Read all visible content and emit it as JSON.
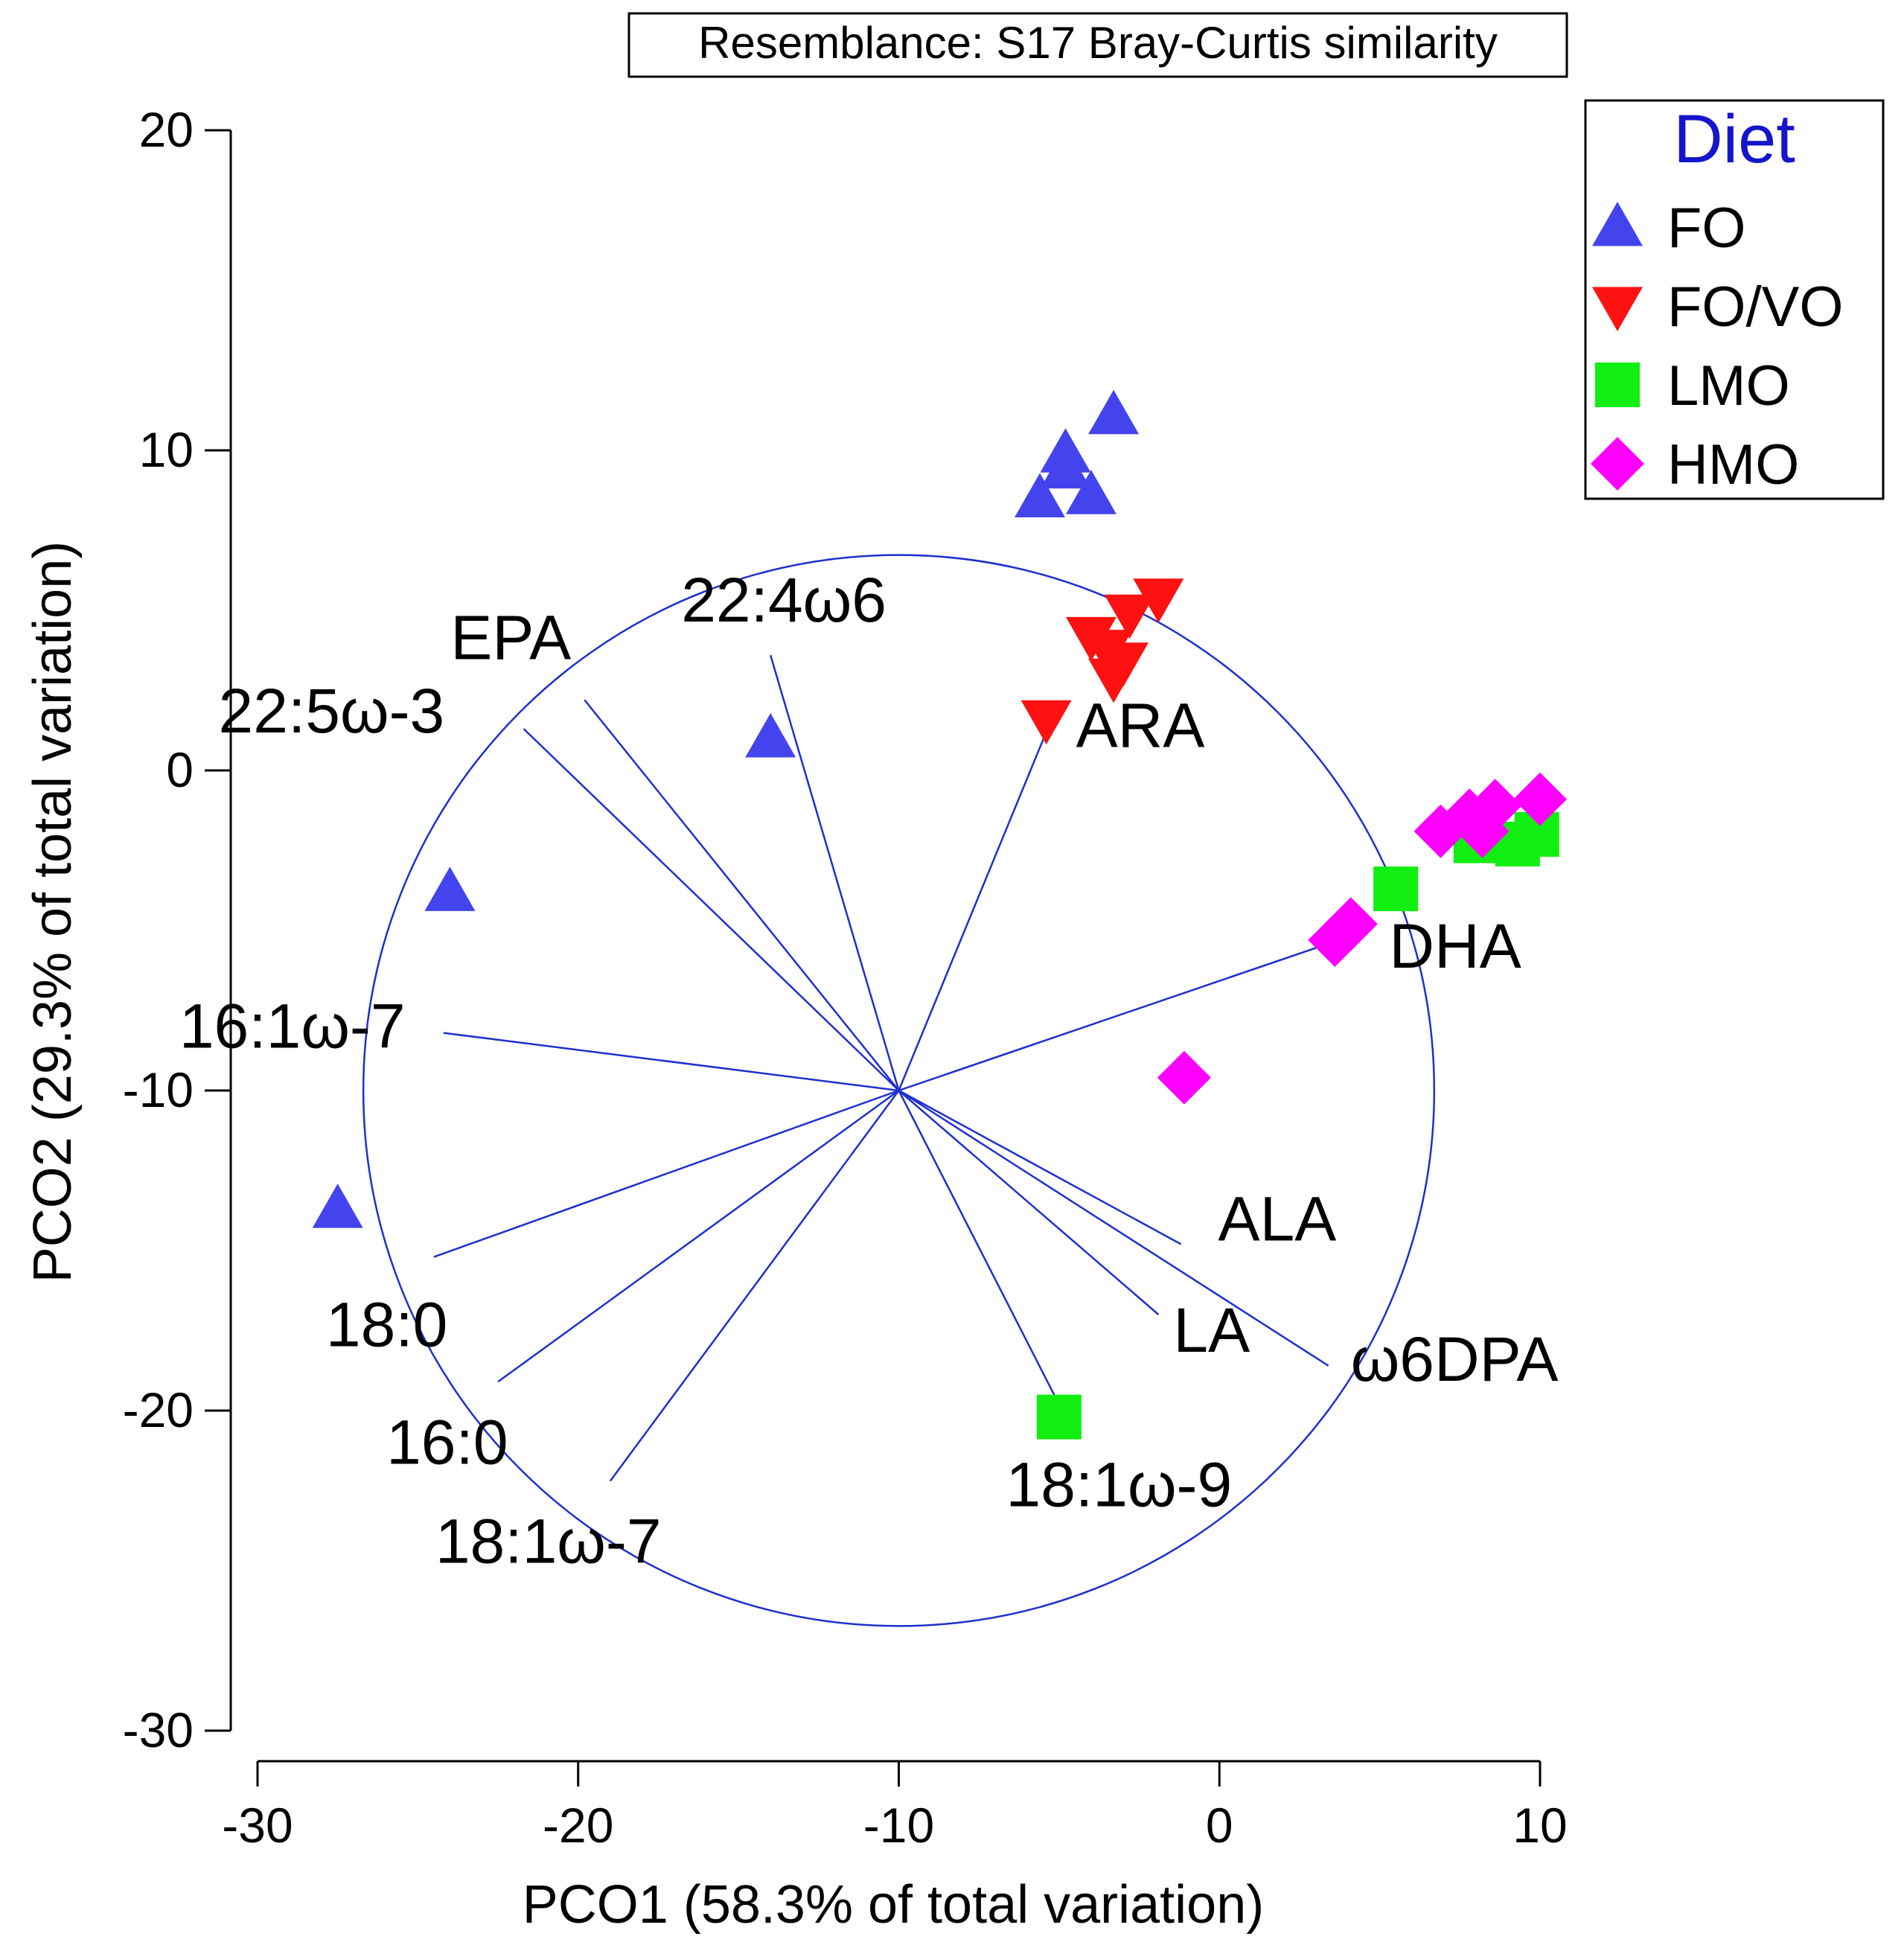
{
  "chart_data": {
    "type": "scatter",
    "title": "Resemblance: S17 Bray-Curtis similarity",
    "xlabel": "PCO1 (58.3% of total variation)",
    "ylabel": "PCO2 (29.3% of total variation)",
    "xlim": [
      -30,
      10
    ],
    "ylim": [
      -30,
      20
    ],
    "xticks": [
      -30,
      -20,
      -10,
      0,
      10
    ],
    "yticks": [
      20,
      10,
      0,
      -10,
      -20,
      -30
    ],
    "legend": {
      "title": "Diet",
      "position": "top-right",
      "entries": [
        "FO",
        "FO/VO",
        "LMO",
        "HMO"
      ]
    },
    "series": [
      {
        "name": "FO",
        "marker": "triangle-up",
        "color": "#4444ee",
        "points": [
          [
            -3.3,
            11.1
          ],
          [
            -4.8,
            9.9
          ],
          [
            -4.8,
            9.4
          ],
          [
            -5.6,
            8.5
          ],
          [
            -4.0,
            8.6
          ],
          [
            -14.0,
            1.0
          ],
          [
            -24.0,
            -3.8
          ],
          [
            -27.5,
            -13.7
          ]
        ]
      },
      {
        "name": "FO/VO",
        "marker": "triangle-down",
        "color": "#ff1111",
        "points": [
          [
            -1.9,
            5.4
          ],
          [
            -2.8,
            4.9
          ],
          [
            -4.0,
            4.2
          ],
          [
            -3.5,
            3.8
          ],
          [
            -3.0,
            3.4
          ],
          [
            -3.3,
            2.9
          ],
          [
            -5.4,
            1.6
          ]
        ]
      },
      {
        "name": "LMO",
        "marker": "square",
        "color": "#11ee11",
        "points": [
          [
            5.5,
            -3.7
          ],
          [
            8.0,
            -2.2
          ],
          [
            9.3,
            -2.3
          ],
          [
            9.9,
            -2.0
          ],
          [
            -5.0,
            -20.2
          ]
        ]
      },
      {
        "name": "HMO",
        "marker": "diamond",
        "color": "#ff00ff",
        "points": [
          [
            10.0,
            -0.9
          ],
          [
            8.6,
            -1.1
          ],
          [
            7.8,
            -1.4
          ],
          [
            6.9,
            -1.9
          ],
          [
            8.2,
            -1.9
          ],
          [
            4.1,
            -4.8
          ],
          [
            3.6,
            -5.3
          ],
          [
            -1.1,
            -9.6
          ]
        ]
      }
    ],
    "correlation_circle": {
      "center": [
        -10,
        -10
      ],
      "radius": 16.7,
      "color": "#1f2fcf"
    },
    "vectors": [
      {
        "label": "22:4ω6",
        "end": [
          -14.0,
          3.6
        ]
      },
      {
        "label": "EPA",
        "end": [
          -19.8,
          2.2
        ]
      },
      {
        "label": "22:5ω-3",
        "end": [
          -21.7,
          1.3
        ]
      },
      {
        "label": "ARA",
        "end": [
          -5.4,
          1.2
        ]
      },
      {
        "label": "DHA",
        "end": [
          4.6,
          -5.0
        ]
      },
      {
        "label": "16:1ω-7",
        "end": [
          -24.2,
          -8.2
        ]
      },
      {
        "label": "18:0",
        "end": [
          -24.5,
          -15.2
        ]
      },
      {
        "label": "16:0",
        "end": [
          -22.5,
          -19.1
        ]
      },
      {
        "label": "18:1ω-7",
        "end": [
          -19.0,
          -22.2
        ]
      },
      {
        "label": "18:1ω-9",
        "end": [
          -4.8,
          -20.2
        ]
      },
      {
        "label": "LA",
        "end": [
          -1.9,
          -17.0
        ]
      },
      {
        "label": "ALA",
        "end": [
          -1.2,
          -14.8
        ]
      },
      {
        "label": "ω6DPA",
        "end": [
          3.4,
          -18.6
        ]
      }
    ]
  }
}
